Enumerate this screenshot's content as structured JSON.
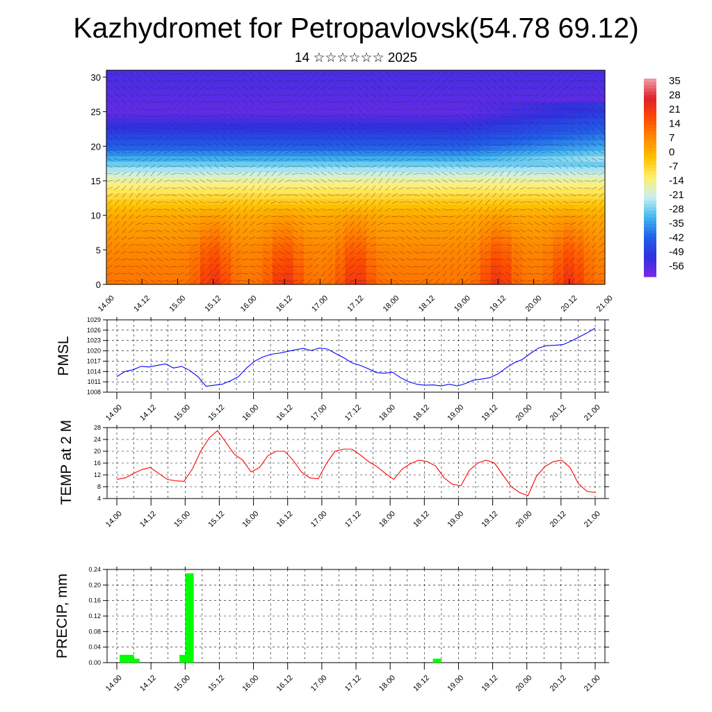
{
  "header": {
    "title": "Kazhydromet for Petropavlovsk(54.78 69.12)",
    "subtitle": "14 ☆☆☆☆☆☆ 2025"
  },
  "time_ticks": [
    "14.00",
    "14.12",
    "15.00",
    "15.12",
    "16.00",
    "16.12",
    "17.00",
    "17.12",
    "18.00",
    "18.12",
    "19.00",
    "19.12",
    "20.00",
    "20.12",
    "21.00"
  ],
  "chart_data": [
    {
      "type": "heatmap",
      "title": "",
      "xlabel": "",
      "ylabel": "",
      "x_ticks": [
        "14.00",
        "14.12",
        "15.00",
        "15.12",
        "16.00",
        "16.12",
        "17.00",
        "17.12",
        "18.00",
        "18.12",
        "19.00",
        "19.12",
        "20.00",
        "20.12",
        "21.00"
      ],
      "y_ticks": [
        0,
        5,
        10,
        15,
        20,
        25,
        30
      ],
      "ylim": [
        0,
        31
      ],
      "colorbar": {
        "labels": [
          "35",
          "28",
          "21",
          "14",
          "7",
          "0",
          "-7",
          "-14",
          "-21",
          "-28",
          "-35",
          "-42",
          "-49",
          "-56"
        ],
        "colors": [
          "#f0a0a8",
          "#e0202a",
          "#ff4a00",
          "#ff8a00",
          "#ffc000",
          "#fff070",
          "#c8f0f0",
          "#40b8f0",
          "#2060e8",
          "#3030e0",
          "#7a28e8"
        ]
      },
      "temperature_profile": {
        "heights": [
          0,
          5,
          10,
          15,
          20,
          25,
          30
        ],
        "values": [
          14,
          10,
          3,
          -14,
          -40,
          -55,
          -52
        ]
      },
      "surface_warm_peaks": [
        "15.12",
        "16.12",
        "17.12",
        "19.12",
        "20.12"
      ],
      "overlay": "wind barbs"
    },
    {
      "type": "line",
      "ylabel": "PMSL",
      "y_ticks": [
        1008,
        1011,
        1014,
        1017,
        1020,
        1023,
        1026,
        1029
      ],
      "ylim": [
        1008,
        1029
      ],
      "series": [
        {
          "color": "#0000ff",
          "values": [
            1012.5,
            1014,
            1014.5,
            1015.5,
            1015.3,
            1015.8,
            1016.2,
            1015,
            1015.5,
            1014.3,
            1012.5,
            1009.7,
            1010,
            1010.3,
            1011.3,
            1012.5,
            1015,
            1017,
            1018.2,
            1019,
            1019.3,
            1019.8,
            1020.3,
            1020.7,
            1020.1,
            1020.8,
            1020.5,
            1019.2,
            1018,
            1016.5,
            1015.8,
            1014.8,
            1013.7,
            1013.5,
            1013.8,
            1012.2,
            1011,
            1010.3,
            1010,
            1010.1,
            1009.8,
            1010.3,
            1009.8,
            1010.5,
            1011.5,
            1011.8,
            1012.2,
            1013.3,
            1015,
            1016.5,
            1017.5,
            1019.2,
            1020.8,
            1021.5,
            1021.6,
            1021.8,
            1022.8,
            1024,
            1025.2,
            1026.6
          ]
        }
      ]
    },
    {
      "type": "line",
      "ylabel": "TEMP at 2 M",
      "y_ticks": [
        4,
        8,
        12,
        16,
        20,
        24,
        28
      ],
      "ylim": [
        4,
        28
      ],
      "series": [
        {
          "color": "#ff0000",
          "values": [
            10.5,
            11,
            12.5,
            13.8,
            14.5,
            12.5,
            10.5,
            10,
            9.8,
            14,
            20,
            24.5,
            27,
            23,
            19,
            17,
            13,
            14.5,
            18.5,
            20,
            20,
            17,
            13,
            11,
            10.7,
            16,
            20,
            20.7,
            20.7,
            18.8,
            16.5,
            14.8,
            12.5,
            10.5,
            14,
            15.8,
            17,
            16.5,
            15,
            11,
            8.8,
            8.3,
            13.5,
            16,
            17,
            16,
            12,
            8,
            6,
            5,
            11.5,
            14.8,
            16.5,
            17,
            14.5,
            9,
            6.5,
            6
          ]
        }
      ]
    },
    {
      "type": "bar",
      "ylabel": "PRECIP, mm",
      "y_ticks": [
        "0.00",
        "0.04",
        "0.08",
        "0.12",
        "0.16",
        "0.20",
        "0.24"
      ],
      "ylim": [
        0,
        0.24
      ],
      "color": "#00ff00",
      "bars": [
        {
          "time": "14.01",
          "value": 0.02
        },
        {
          "time": "14.03",
          "value": 0.02
        },
        {
          "time": "14.05",
          "value": 0.01
        },
        {
          "time": "14.22",
          "value": 0.02
        },
        {
          "time": "15.00",
          "value": 0.23
        },
        {
          "time": "18.15",
          "value": 0.01
        }
      ]
    }
  ]
}
